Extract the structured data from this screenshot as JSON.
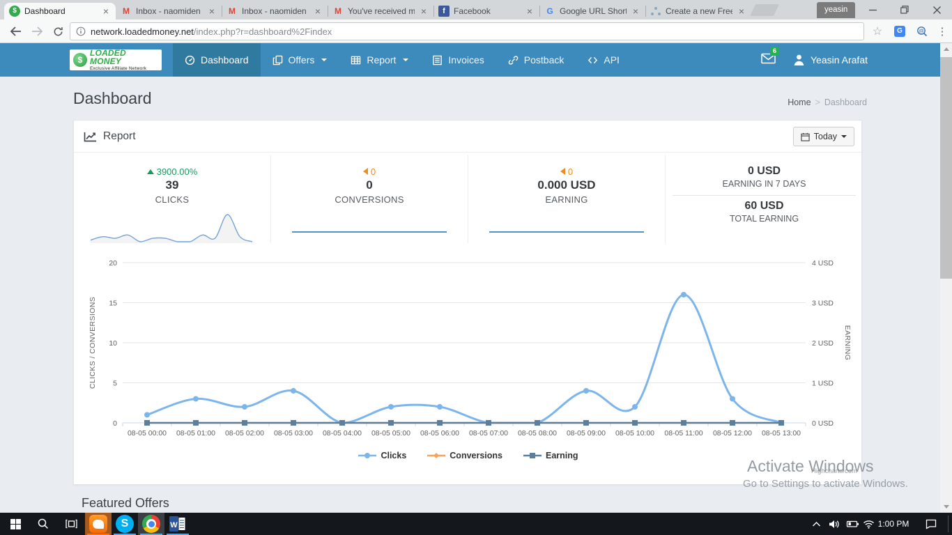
{
  "browser": {
    "tabs": [
      {
        "title": "Dashboard",
        "icon": "loadedmoney-favicon",
        "glyph": "$",
        "active": true
      },
      {
        "title": "Inbox - naomiden",
        "icon": "gmail-favicon",
        "glyph": "M",
        "active": false
      },
      {
        "title": "Inbox - naomiden",
        "icon": "gmail-favicon",
        "glyph": "M",
        "active": false
      },
      {
        "title": "You've received m",
        "icon": "gmail-favicon",
        "glyph": "M",
        "active": false
      },
      {
        "title": "Facebook",
        "icon": "facebook-favicon",
        "glyph": "f",
        "active": false
      },
      {
        "title": "Google URL Short",
        "icon": "google-favicon",
        "glyph": "G",
        "active": false
      },
      {
        "title": "Create a new Free",
        "icon": "freelancer-favicon",
        "glyph": "",
        "active": false
      }
    ],
    "profile_name": "yeasin",
    "url": {
      "domain": "network.loadedmoney.net",
      "path": "/index.php?r=dashboard%2Findex"
    }
  },
  "navbar": {
    "brand_title": "LOADED MONEY",
    "brand_subtitle": "Exclusive Affiliate Network",
    "items": [
      {
        "label": "Dashboard",
        "icon": "dashboard-icon",
        "caret": false,
        "active": true
      },
      {
        "label": "Offers",
        "icon": "offers-icon",
        "caret": true,
        "active": false
      },
      {
        "label": "Report",
        "icon": "report-icon",
        "caret": true,
        "active": false
      },
      {
        "label": "Invoices",
        "icon": "invoices-icon",
        "caret": false,
        "active": false
      },
      {
        "label": "Postback",
        "icon": "postback-icon",
        "caret": false,
        "active": false
      },
      {
        "label": "API",
        "icon": "api-icon",
        "caret": false,
        "active": false
      }
    ],
    "mail_badge": "6",
    "user_name": "Yeasin Arafat"
  },
  "page": {
    "title": "Dashboard",
    "breadcrumb": [
      "Home",
      "Dashboard"
    ],
    "breadcrumb_separator": ">",
    "featured_heading": "Featured Offers"
  },
  "report_panel": {
    "title": "Report",
    "range_button_label": "Today",
    "stats": [
      {
        "delta": "3900.00%",
        "direction": "up",
        "value": "39",
        "label": "CLICKS"
      },
      {
        "delta": "0",
        "direction": "flat",
        "value": "0",
        "label": "CONVERSIONS"
      },
      {
        "delta": "0",
        "direction": "flat",
        "value": "0.000 USD",
        "label": "EARNING"
      }
    ],
    "totals": [
      {
        "value": "0 USD",
        "label": "EARNING IN 7 DAYS"
      },
      {
        "value": "60 USD",
        "label": "TOTAL EARNING"
      }
    ]
  },
  "chart_data": {
    "type": "line",
    "categories": [
      "08-05 00:00",
      "08-05 01:00",
      "08-05 02:00",
      "08-05 03:00",
      "08-05 04:00",
      "08-05 05:00",
      "08-05 06:00",
      "08-05 07:00",
      "08-05 08:00",
      "08-05 09:00",
      "08-05 10:00",
      "08-05 11:00",
      "08-05 12:00",
      "08-05 13:00"
    ],
    "series": [
      {
        "name": "Clicks",
        "color": "#7cb5ec",
        "marker": "circle",
        "axis": "left",
        "values": [
          1,
          3,
          2,
          4,
          0,
          2,
          2,
          0,
          0,
          4,
          2,
          16,
          3,
          0
        ]
      },
      {
        "name": "Conversions",
        "color": "#f7a35c",
        "marker": "diamond",
        "axis": "left",
        "values": [
          0,
          0,
          0,
          0,
          0,
          0,
          0,
          0,
          0,
          0,
          0,
          0,
          0,
          0
        ]
      },
      {
        "name": "Earning",
        "color": "#5d7f9e",
        "marker": "square",
        "axis": "right",
        "values": [
          0,
          0,
          0,
          0,
          0,
          0,
          0,
          0,
          0,
          0,
          0,
          0,
          0,
          0
        ]
      }
    ],
    "left_axis": {
      "title": "CLICKS / CONVERSIONS",
      "ticks": [
        0,
        5,
        10,
        15,
        20
      ],
      "max": 20
    },
    "right_axis": {
      "title": "EARNING",
      "tick_labels": [
        "0 USD",
        "1 USD",
        "2 USD",
        "3 USD",
        "4 USD"
      ],
      "max": 4
    },
    "legend_position": "bottom",
    "grid": true,
    "credit": "Highcharts.com"
  },
  "watermark": {
    "line1": "Activate Windows",
    "line2": "Go to Settings to activate Windows."
  },
  "taskbar": {
    "time": "1:00 PM"
  },
  "colors": {
    "navbar": "#3d8bbd",
    "navbar_active": "#30799f",
    "positive_delta": "#169c61",
    "neutral_delta": "#ee8d1f",
    "sparkline_stroke": "#74a3d4",
    "flat_sparkline": "#5591c5",
    "mail_badge_bg": "#23b24b"
  }
}
